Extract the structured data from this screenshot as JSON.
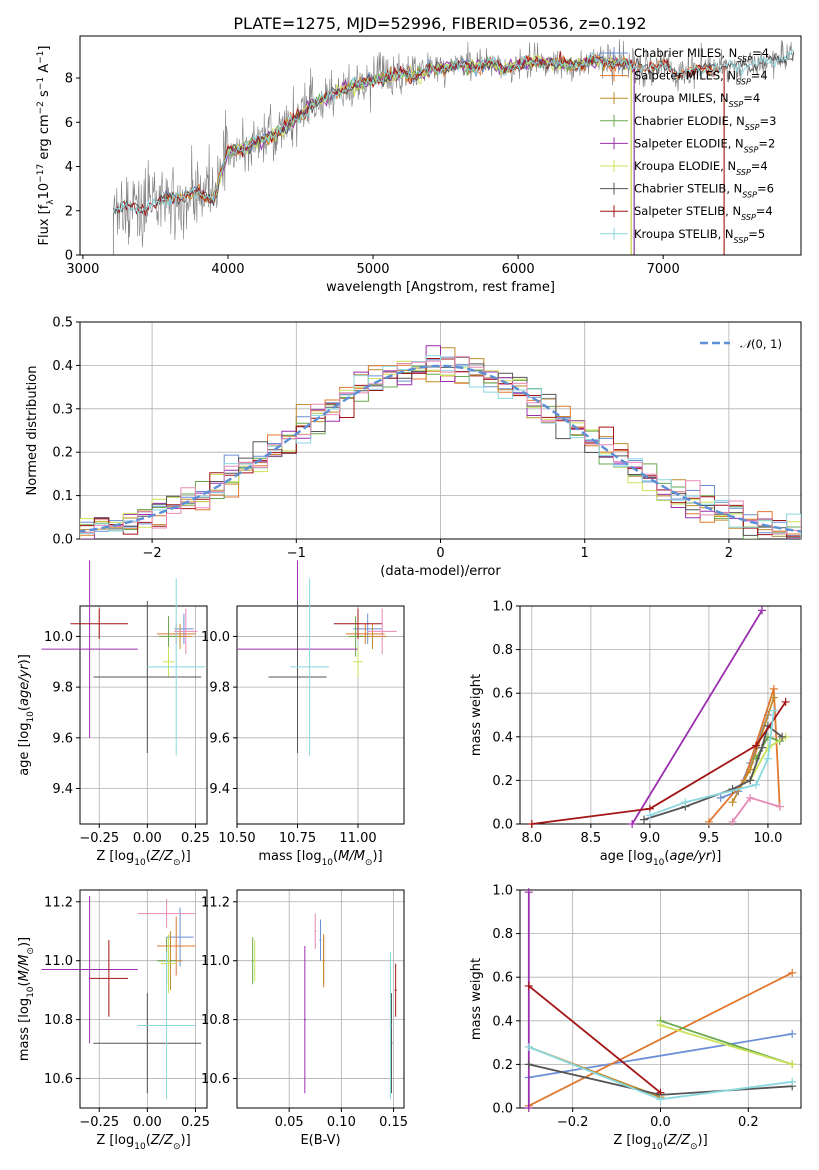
{
  "figure_title": "PLATE=1275, MJD=52996, FIBERID=0536, z=0.192",
  "colors": {
    "Chabrier MILES": "#6b8fd6",
    "Salpeter MILES": "#e07830",
    "Kroupa MILES": "#c08b2a",
    "Chabrier ELODIE": "#6aa84f",
    "Salpeter ELODIE": "#9b2fae",
    "Kroupa ELODIE": "#cbe25a",
    "Chabrier STELIB": "#555555",
    "Salpeter STELIB": "#a31515",
    "Kroupa STELIB": "#8ad8e0",
    "pink": "#e78ab5",
    "normal_curve": "#5b8fd6"
  },
  "chart_data": [
    {
      "id": "spectrum",
      "type": "line",
      "xlabel": "wavelength [Angstrom, rest frame]",
      "ylabel": "Flux [f",
      "ylabel_full": "Flux [f_λ 10^-17 erg cm^-2 s^-1 A^-1]",
      "xlim": [
        2980,
        7950
      ],
      "ylim": [
        0,
        9.9
      ],
      "xticks": [
        3000,
        4000,
        5000,
        6000,
        7000
      ],
      "yticks": [
        0,
        2,
        4,
        6,
        8
      ],
      "legend_position": "right",
      "legend": [
        {
          "label": "Chabrier MILES, N",
          "sub": "SSP",
          "suffix": "=4",
          "color_key": "Chabrier MILES"
        },
        {
          "label": "Salpeter MILES, N",
          "sub": "SSP",
          "suffix": "=4",
          "color_key": "Salpeter MILES"
        },
        {
          "label": "Kroupa MILES, N",
          "sub": "SSP",
          "suffix": "=4",
          "color_key": "Kroupa MILES"
        },
        {
          "label": "Chabrier ELODIE, N",
          "sub": "SSP",
          "suffix": "=3",
          "color_key": "Chabrier ELODIE"
        },
        {
          "label": "Salpeter ELODIE, N",
          "sub": "SSP",
          "suffix": "=2",
          "color_key": "Salpeter ELODIE"
        },
        {
          "label": "Kroupa ELODIE, N",
          "sub": "SSP",
          "suffix": "=4",
          "color_key": "Kroupa ELODIE"
        },
        {
          "label": "Chabrier STELIB, N",
          "sub": "SSP",
          "suffix": "=6",
          "color_key": "Chabrier STELIB"
        },
        {
          "label": "Salpeter STELIB, N",
          "sub": "SSP",
          "suffix": "=4",
          "color_key": "Salpeter STELIB"
        },
        {
          "label": "Kroupa STELIB, N",
          "sub": "SSP",
          "suffix": "=5",
          "color_key": "Kroupa STELIB"
        }
      ],
      "model_envelope": {
        "x": [
          3200,
          3300,
          3400,
          3500,
          3600,
          3700,
          3800,
          3900,
          4000,
          4100,
          4200,
          4300,
          4400,
          4500,
          4600,
          4700,
          4800,
          4900,
          5000,
          5100,
          5200,
          5300,
          5400,
          5500,
          5600,
          5700,
          5800,
          5900,
          6000,
          6100,
          6200,
          6300,
          6400,
          6500,
          6600,
          6700,
          6800,
          6900,
          7000,
          7100,
          7200,
          7300,
          7400,
          7500,
          7600,
          7700,
          7800,
          7900
        ],
        "y": [
          2.0,
          2.2,
          2.1,
          2.2,
          2.7,
          2.6,
          2.9,
          2.5,
          4.7,
          4.8,
          5.1,
          5.4,
          5.8,
          6.3,
          6.9,
          7.2,
          7.5,
          7.7,
          7.9,
          8.0,
          8.2,
          8.1,
          8.4,
          8.5,
          8.6,
          8.5,
          8.7,
          8.4,
          8.6,
          8.7,
          8.7,
          8.6,
          8.6,
          8.8,
          8.7,
          8.7,
          8.5,
          8.5,
          8.5,
          8.2,
          8.3,
          8.4,
          8.5,
          8.6,
          8.6,
          8.7,
          8.9,
          9.0
        ]
      }
    },
    {
      "id": "residuals",
      "type": "histogram",
      "xlabel": "(data-model)/error",
      "ylabel": "Normed distribution",
      "xlim": [
        -2.5,
        2.5
      ],
      "ylim": [
        0,
        0.5
      ],
      "xticks": [
        -2,
        -1,
        0,
        1,
        2
      ],
      "yticks": [
        0.0,
        0.1,
        0.2,
        0.3,
        0.4,
        0.5
      ],
      "grid": true,
      "legend_position": "top-right",
      "legend": [
        "N(0,1)"
      ],
      "bin_width": 0.1,
      "reference": "normal distribution, mean 0, sigma 1"
    },
    {
      "id": "z-age",
      "type": "scatter",
      "xlabel": "Z [log10(Z/Z⊙)]",
      "ylabel": "age  [log10(age/yr)]",
      "xlim": [
        -0.35,
        0.31
      ],
      "ylim": [
        9.26,
        10.12
      ],
      "xticks": [
        -0.25,
        0.0,
        0.25
      ],
      "yticks": [
        9.4,
        9.6,
        9.8,
        10.0
      ],
      "grid": true
    },
    {
      "id": "mass-age",
      "type": "scatter",
      "xlabel": "mass [log10(M/M⊙)]",
      "ylabel": "",
      "xlim": [
        10.5,
        11.19
      ],
      "ylim": [
        9.26,
        10.12
      ],
      "xticks": [
        10.5,
        10.75,
        11.0
      ],
      "yticks": [
        9.4,
        9.6,
        9.8,
        10.0
      ],
      "grid": true
    },
    {
      "id": "age-massweight",
      "type": "line",
      "xlabel": "age  [log10(age/yr)]",
      "ylabel": "mass weight",
      "xlim": [
        7.9,
        10.28
      ],
      "ylim": [
        0,
        1
      ],
      "xticks": [
        8.0,
        8.5,
        9.0,
        9.5,
        10.0
      ],
      "yticks": [
        0.0,
        0.2,
        0.4,
        0.6,
        0.8,
        1.0
      ],
      "grid": true,
      "series": [
        {
          "color_key": "Chabrier MILES",
          "x": [
            9.6,
            9.75,
            9.85,
            9.9,
            10.0
          ],
          "y": [
            0.12,
            0.15,
            0.28,
            0.35,
            0.5
          ]
        },
        {
          "color_key": "Salpeter MILES",
          "x": [
            9.5,
            9.8,
            10.05,
            10.1
          ],
          "y": [
            0.01,
            0.2,
            0.62,
            0.08
          ]
        },
        {
          "color_key": "Kroupa MILES",
          "x": [
            9.7,
            9.85,
            10.05
          ],
          "y": [
            0.1,
            0.25,
            0.58
          ]
        },
        {
          "color_key": "Chabrier ELODIE",
          "x": [
            9.9,
            10.0,
            10.1
          ],
          "y": [
            0.3,
            0.4,
            0.38
          ]
        },
        {
          "color_key": "Salpeter ELODIE",
          "x": [
            8.85,
            9.95
          ],
          "y": [
            0.0,
            0.98
          ]
        },
        {
          "color_key": "Kroupa ELODIE",
          "x": [
            9.85,
            10.0,
            10.15
          ],
          "y": [
            0.2,
            0.35,
            0.4
          ]
        },
        {
          "color_key": "Chabrier STELIB",
          "x": [
            8.95,
            9.3,
            9.7,
            9.85,
            9.95,
            10.0,
            10.12
          ],
          "y": [
            0.02,
            0.08,
            0.16,
            0.2,
            0.35,
            0.45,
            0.4
          ]
        },
        {
          "color_key": "Salpeter STELIB",
          "x": [
            8.0,
            9.0,
            9.9,
            10.15
          ],
          "y": [
            0.0,
            0.07,
            0.36,
            0.56
          ]
        },
        {
          "color_key": "Kroupa STELIB",
          "x": [
            9.0,
            9.3,
            9.9,
            10.0,
            10.05
          ],
          "y": [
            0.04,
            0.1,
            0.18,
            0.3,
            0.52
          ]
        },
        {
          "color_key": "pink",
          "x": [
            9.7,
            9.85,
            10.1
          ],
          "y": [
            0.01,
            0.12,
            0.08
          ]
        }
      ]
    },
    {
      "id": "z-mass",
      "type": "scatter",
      "xlabel": "Z [log10(Z/Z⊙)]",
      "ylabel": "mass [log10(M/M⊙)]",
      "xlim": [
        -0.35,
        0.31
      ],
      "ylim": [
        10.5,
        11.24
      ],
      "xticks": [
        -0.25,
        0.0,
        0.25
      ],
      "yticks": [
        10.6,
        10.8,
        11.0,
        11.2
      ],
      "grid": true
    },
    {
      "id": "ebv-mass",
      "type": "scatter",
      "xlabel": "E(B-V)",
      "ylabel": "",
      "xlim": [
        0.0,
        0.16
      ],
      "ylim": [
        10.5,
        11.24
      ],
      "xticks": [
        0.05,
        0.1,
        0.15
      ],
      "yticks": [
        10.6,
        10.8,
        11.0,
        11.2
      ],
      "grid": true
    },
    {
      "id": "z-massweight",
      "type": "line",
      "xlabel": "Z [log10(Z/Z⊙)]",
      "ylabel": "mass weight",
      "xlim": [
        -0.32,
        0.32
      ],
      "ylim": [
        0,
        1
      ],
      "xticks": [
        -0.2,
        0.0,
        0.2
      ],
      "yticks": [
        0.0,
        0.2,
        0.4,
        0.6,
        0.8,
        1.0
      ],
      "grid": true,
      "series": [
        {
          "color_key": "Chabrier MILES",
          "x": [
            -0.3,
            0.3
          ],
          "y": [
            0.14,
            0.34
          ]
        },
        {
          "color_key": "Salpeter MILES",
          "x": [
            -0.3,
            0.3
          ],
          "y": [
            0.01,
            0.62
          ]
        },
        {
          "color_key": "Kroupa MILES",
          "x": [
            -0.3,
            0.0
          ],
          "y": [
            0.28,
            0.05
          ]
        },
        {
          "color_key": "Chabrier ELODIE",
          "x": [
            0.0,
            0.3
          ],
          "y": [
            0.4,
            0.2
          ]
        },
        {
          "color_key": "Salpeter ELODIE",
          "x": [
            -0.3,
            -0.3
          ],
          "y": [
            0.0,
            0.99
          ]
        },
        {
          "color_key": "Kroupa ELODIE",
          "x": [
            0.0,
            0.3
          ],
          "y": [
            0.38,
            0.2
          ]
        },
        {
          "color_key": "Chabrier STELIB",
          "x": [
            -0.3,
            0.0,
            0.3
          ],
          "y": [
            0.2,
            0.06,
            0.1
          ]
        },
        {
          "color_key": "Salpeter STELIB",
          "x": [
            -0.3,
            0.0
          ],
          "y": [
            0.56,
            0.07
          ]
        },
        {
          "color_key": "Kroupa STELIB",
          "x": [
            -0.3,
            0.0,
            0.3
          ],
          "y": [
            0.28,
            0.04,
            0.12
          ]
        }
      ]
    }
  ]
}
